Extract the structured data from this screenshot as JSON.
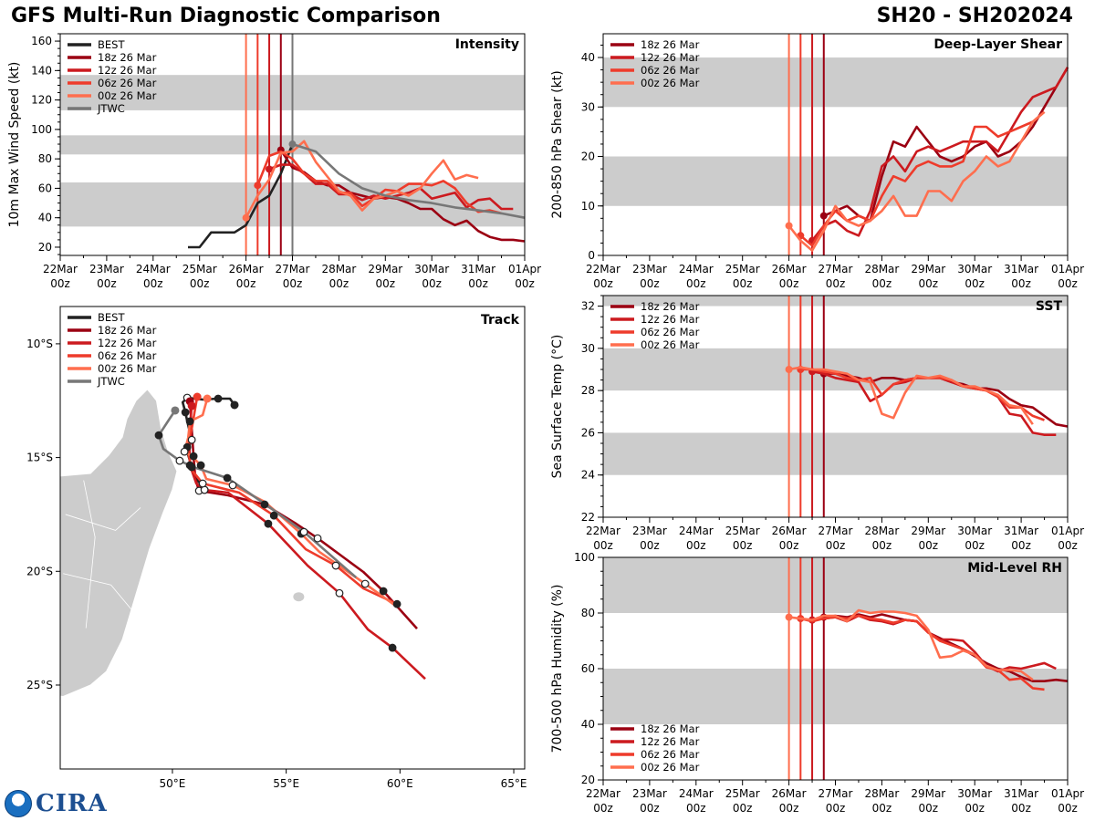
{
  "header": {
    "title": "GFS Multi-Run Diagnostic Comparison",
    "storm_id": "SH20 - SH202024"
  },
  "logo": {
    "text": "CIRA",
    "badge": "NOAA"
  },
  "colors": {
    "best": "#222222",
    "r18": "#9b0012",
    "r12": "#cc1a1f",
    "r06": "#ee3b2b",
    "r00": "#ff6e4e",
    "jtwc": "#777777",
    "band": "#cccccc"
  },
  "x_axis": {
    "ticks": [
      "22Mar",
      "23Mar",
      "24Mar",
      "25Mar",
      "26Mar",
      "27Mar",
      "28Mar",
      "29Mar",
      "30Mar",
      "31Mar",
      "01Apr"
    ],
    "sub": "00z",
    "hours_per_tick": 24
  },
  "chart_data": [
    {
      "type": "line",
      "id": "intensity",
      "title": "Intensity",
      "ylabel": "10m Max Wind Speed (kt)",
      "ylim": [
        14.4,
        165
      ],
      "yticks": [
        20,
        40,
        60,
        80,
        100,
        120,
        140,
        160
      ],
      "bands": [
        [
          34,
          64
        ],
        [
          83,
          96
        ],
        [
          113,
          137
        ]
      ],
      "legend": "top-left",
      "x_unit": "hours since 22Mar 00z, 6-hourly",
      "vlines": [
        {
          "hour": 96,
          "color": "r00"
        },
        {
          "hour": 102,
          "color": "r06"
        },
        {
          "hour": 108,
          "color": "r12"
        },
        {
          "hour": 114,
          "color": "r18"
        },
        {
          "hour": 120,
          "color": "jtwc"
        }
      ],
      "series": [
        {
          "name": "BEST",
          "color": "best",
          "start_hour": 66,
          "values": [
            20,
            20,
            30,
            30,
            30,
            35,
            50,
            55,
            70,
            90
          ],
          "marker": false
        },
        {
          "name": "18z 26 Mar",
          "color": "r18",
          "start_hour": 114,
          "values": [
            86,
            74,
            71,
            65,
            62,
            62,
            57,
            55,
            53,
            54,
            53,
            50,
            46,
            46,
            39,
            35,
            38,
            31,
            27,
            25,
            25,
            24
          ]
        },
        {
          "name": "12z 26 Mar",
          "color": "r12",
          "start_hour": 108,
          "values": [
            73,
            76,
            76,
            70,
            63,
            63,
            56,
            56,
            52,
            55,
            53,
            55,
            57,
            60,
            53,
            55,
            57,
            47,
            52,
            53,
            46,
            46
          ]
        },
        {
          "name": "06z 26 Mar",
          "color": "r06",
          "start_hour": 102,
          "values": [
            62,
            82,
            85,
            80,
            70,
            65,
            65,
            57,
            57,
            48,
            53,
            59,
            58,
            63,
            63,
            62,
            65,
            60,
            50,
            44,
            45,
            43
          ]
        },
        {
          "name": "00z 26 Mar",
          "color": "r00",
          "start_hour": 96,
          "values": [
            40,
            55,
            66,
            84,
            85,
            92,
            78,
            68,
            58,
            55,
            45,
            53,
            55,
            58,
            55,
            60,
            70,
            79,
            66,
            69,
            67
          ]
        },
        {
          "name": "JTWC",
          "color": "jtwc",
          "start_hour": 120,
          "step": 12,
          "values": [
            90,
            85,
            70,
            60,
            55,
            52,
            50,
            47,
            45,
            43,
            40
          ]
        }
      ]
    },
    {
      "type": "line",
      "id": "shear",
      "title": "Deep-Layer Shear",
      "ylabel": "200-850 hPa Shear (kt)",
      "ylim": [
        0,
        44.8
      ],
      "yticks": [
        0,
        10,
        20,
        30,
        40
      ],
      "bands": [
        [
          10,
          20
        ],
        [
          30,
          40
        ]
      ],
      "legend": "top-left",
      "vlines": [
        {
          "hour": 96,
          "color": "r00"
        },
        {
          "hour": 102,
          "color": "r06"
        },
        {
          "hour": 108,
          "color": "r12"
        },
        {
          "hour": 114,
          "color": "r18"
        }
      ],
      "series": [
        {
          "name": "18z 26 Mar",
          "color": "r18",
          "start_hour": 114,
          "values": [
            8,
            9,
            10,
            8,
            7,
            16,
            23,
            22,
            26,
            23,
            20,
            19,
            20,
            22,
            23,
            20,
            21,
            23,
            26,
            30,
            34,
            38
          ]
        },
        {
          "name": "12z 26 Mar",
          "color": "r12",
          "start_hour": 108,
          "values": [
            3,
            6,
            7,
            5,
            4,
            9,
            18,
            20,
            17,
            21,
            22,
            21,
            22,
            23,
            23,
            23,
            21,
            25,
            29,
            32,
            33,
            34,
            38
          ]
        },
        {
          "name": "06z 26 Mar",
          "color": "r06",
          "start_hour": 102,
          "values": [
            4,
            2,
            6,
            9,
            7,
            8,
            7,
            12,
            16,
            15,
            18,
            19,
            18,
            18,
            19,
            26,
            26,
            24,
            25,
            26,
            27,
            29
          ]
        },
        {
          "name": "00z 26 Mar",
          "color": "r00",
          "start_hour": 96,
          "values": [
            6,
            3,
            1,
            5,
            10,
            7,
            6,
            7,
            9,
            12,
            8,
            8,
            13,
            13,
            11,
            15,
            17,
            20,
            18,
            19,
            23,
            27,
            29
          ]
        }
      ]
    },
    {
      "type": "line",
      "id": "sst",
      "title": "SST",
      "ylabel": "Sea Surface Temp (°C)",
      "ylim": [
        22,
        32.5
      ],
      "yticks": [
        22,
        24,
        26,
        28,
        30,
        32
      ],
      "bands": [
        [
          24,
          26
        ],
        [
          28,
          30
        ],
        [
          32,
          33
        ]
      ],
      "legend": "top-left",
      "vlines": [
        {
          "hour": 96,
          "color": "r00"
        },
        {
          "hour": 102,
          "color": "r06"
        },
        {
          "hour": 108,
          "color": "r12"
        },
        {
          "hour": 114,
          "color": "r18"
        }
      ],
      "series": [
        {
          "name": "18z 26 Mar",
          "color": "r18",
          "start_hour": 114,
          "values": [
            28.8,
            28.8,
            28.7,
            28.6,
            28.4,
            28.6,
            28.6,
            28.5,
            28.6,
            28.6,
            28.6,
            28.4,
            28.3,
            28.1,
            28.1,
            28.0,
            27.6,
            27.3,
            27.2,
            26.8,
            26.4,
            26.3
          ]
        },
        {
          "name": "12z 26 Mar",
          "color": "r12",
          "start_hour": 108,
          "values": [
            28.9,
            28.8,
            28.6,
            28.5,
            28.4,
            27.5,
            27.8,
            28.3,
            28.4,
            28.6,
            28.6,
            28.6,
            28.4,
            28.2,
            28.1,
            28.0,
            27.7,
            26.9,
            26.8,
            26.0,
            25.9,
            25.9
          ]
        },
        {
          "name": "06z 26 Mar",
          "color": "r06",
          "start_hour": 102,
          "values": [
            29.0,
            29.0,
            28.9,
            28.8,
            28.6,
            28.5,
            28.6,
            27.8,
            28.3,
            28.5,
            28.6,
            28.6,
            28.6,
            28.5,
            28.2,
            28.1,
            28.0,
            27.7,
            27.2,
            27.2,
            26.8,
            26.6
          ]
        },
        {
          "name": "00z 26 Mar",
          "color": "r00",
          "start_hour": 96,
          "values": [
            29.0,
            29.1,
            29.0,
            29.0,
            28.9,
            28.8,
            28.5,
            28.4,
            26.9,
            26.7,
            27.9,
            28.7,
            28.6,
            28.7,
            28.5,
            28.2,
            28.2,
            28.0,
            27.8,
            27.3,
            27.2,
            26.4
          ]
        }
      ]
    },
    {
      "type": "line",
      "id": "rh",
      "title": "Mid-Level RH",
      "ylabel": "700-500 hPa Humidity (%)",
      "ylim": [
        20,
        100
      ],
      "yticks": [
        20,
        40,
        60,
        80,
        100
      ],
      "bands": [
        [
          40,
          60
        ],
        [
          80,
          100
        ]
      ],
      "legend": "bottom-left",
      "vlines": [
        {
          "hour": 96,
          "color": "r00"
        },
        {
          "hour": 102,
          "color": "r06"
        },
        {
          "hour": 108,
          "color": "r12"
        },
        {
          "hour": 114,
          "color": "r18"
        }
      ],
      "series": [
        {
          "name": "18z 26 Mar",
          "color": "r18",
          "start_hour": 114,
          "values": [
            78.5,
            79,
            78.5,
            79.5,
            78.5,
            79.5,
            78.5,
            77.5,
            77,
            73,
            71,
            69,
            67,
            64.5,
            62,
            60,
            59,
            57,
            55.5,
            55.5,
            56,
            55.5
          ]
        },
        {
          "name": "12z 26 Mar",
          "color": "r12",
          "start_hour": 108,
          "values": [
            77.5,
            78,
            78.5,
            77,
            79,
            77.5,
            77,
            76,
            77.5,
            77,
            73,
            70.5,
            70.5,
            70,
            66,
            61,
            59,
            60.5,
            60,
            61,
            62,
            60
          ]
        },
        {
          "name": "06z 26 Mar",
          "color": "r06",
          "start_hour": 102,
          "values": [
            78,
            77,
            78,
            78.5,
            78,
            79,
            78,
            77.5,
            76.5,
            77.5,
            77,
            73,
            70,
            68.5,
            67,
            65,
            60.5,
            59.5,
            56,
            56.5,
            53,
            52.5
          ]
        },
        {
          "name": "00z 26 Mar",
          "color": "r00",
          "start_hour": 96,
          "values": [
            78.5,
            78,
            77.5,
            79,
            79,
            77,
            81,
            80,
            80.5,
            80.5,
            80,
            79,
            74,
            64,
            64.5,
            66.5,
            65,
            61,
            59.5,
            59.5,
            59,
            56
          ]
        }
      ]
    },
    {
      "type": "scatter",
      "id": "track",
      "title": "Track",
      "legend": "top-left",
      "lon_range": [
        45.07,
        65.48
      ],
      "lat_range": [
        -28.69,
        -8.36
      ],
      "lon_ticks": [
        {
          "v": 50,
          "label": "50°E"
        },
        {
          "v": 55,
          "label": "55°E"
        },
        {
          "v": 60,
          "label": "60°E"
        },
        {
          "v": 65,
          "label": "65°E"
        }
      ],
      "lat_ticks": [
        {
          "v": -10,
          "label": "10°S"
        },
        {
          "v": -15,
          "label": "15°S"
        },
        {
          "v": -20,
          "label": "20°S"
        },
        {
          "v": -25,
          "label": "25°S"
        }
      ],
      "series": [
        {
          "name": "BEST",
          "color": "best",
          "points": [
            [
              52.73,
              -12.69
            ],
            [
              52.53,
              -12.41
            ],
            [
              52.01,
              -12.41
            ],
            [
              51.33,
              -12.45
            ],
            [
              50.65,
              -12.37
            ],
            [
              50.45,
              -12.57
            ],
            [
              50.57,
              -13.01
            ],
            [
              50.65,
              -13.41
            ],
            [
              50.85,
              -14.22
            ],
            [
              50.65,
              -14.74
            ],
            [
              50.85,
              -15.42
            ],
            [
              51.13,
              -16.02
            ],
            [
              51.41,
              -16.42
            ]
          ]
        },
        {
          "name": "18z 26 Mar",
          "color": "r18",
          "points": [
            [
              50.77,
              -12.53
            ],
            [
              50.85,
              -13.73
            ],
            [
              50.93,
              -14.94
            ],
            [
              51.01,
              -15.94
            ],
            [
              51.17,
              -16.46
            ],
            [
              52.45,
              -16.66
            ],
            [
              54.05,
              -17.06
            ],
            [
              55.38,
              -17.87
            ],
            [
              56.38,
              -18.55
            ],
            [
              58.39,
              -20.03
            ],
            [
              59.27,
              -20.87
            ],
            [
              60.75,
              -22.52
            ]
          ]
        },
        {
          "name": "12z 26 Mar",
          "color": "r12",
          "points": [
            [
              50.85,
              -12.73
            ],
            [
              50.73,
              -14.13
            ],
            [
              50.77,
              -15.34
            ],
            [
              51.05,
              -16.14
            ],
            [
              51.41,
              -16.42
            ],
            [
              52.45,
              -16.54
            ],
            [
              54.21,
              -17.91
            ],
            [
              55.94,
              -19.75
            ],
            [
              57.34,
              -20.96
            ],
            [
              58.59,
              -22.56
            ],
            [
              59.67,
              -23.36
            ],
            [
              61.11,
              -24.73
            ]
          ]
        },
        {
          "name": "06z 26 Mar",
          "color": "r06",
          "points": [
            [
              51.09,
              -12.33
            ],
            [
              50.85,
              -13.73
            ],
            [
              50.65,
              -14.54
            ],
            [
              50.85,
              -15.54
            ],
            [
              51.33,
              -16.14
            ],
            [
              52.93,
              -16.54
            ],
            [
              54.46,
              -17.55
            ],
            [
              55.86,
              -19.03
            ],
            [
              57.18,
              -19.75
            ],
            [
              58.39,
              -20.75
            ],
            [
              59.87,
              -21.44
            ]
          ]
        },
        {
          "name": "00z 26 Mar",
          "color": "r00",
          "points": [
            [
              51.53,
              -12.41
            ],
            [
              51.33,
              -13.13
            ],
            [
              50.77,
              -13.41
            ],
            [
              50.69,
              -14.13
            ],
            [
              50.53,
              -14.74
            ],
            [
              50.85,
              -14.94
            ],
            [
              51.25,
              -15.34
            ],
            [
              51.49,
              -15.94
            ],
            [
              52.65,
              -16.22
            ],
            [
              54.05,
              -16.94
            ],
            [
              55.66,
              -18.35
            ],
            [
              56.46,
              -19.15
            ],
            [
              58.47,
              -20.55
            ],
            [
              59.87,
              -21.56
            ]
          ]
        },
        {
          "name": "JTWC",
          "color": "jtwc",
          "points": [
            [
              50.12,
              -12.93
            ],
            [
              49.8,
              -13.41
            ],
            [
              49.4,
              -14.02
            ],
            [
              49.6,
              -14.62
            ],
            [
              50.32,
              -15.14
            ],
            [
              50.93,
              -15.42
            ],
            [
              52.41,
              -15.9
            ],
            [
              54.1,
              -17.06
            ],
            [
              55.78,
              -18.27
            ],
            [
              58.07,
              -20.27
            ]
          ]
        }
      ]
    }
  ]
}
